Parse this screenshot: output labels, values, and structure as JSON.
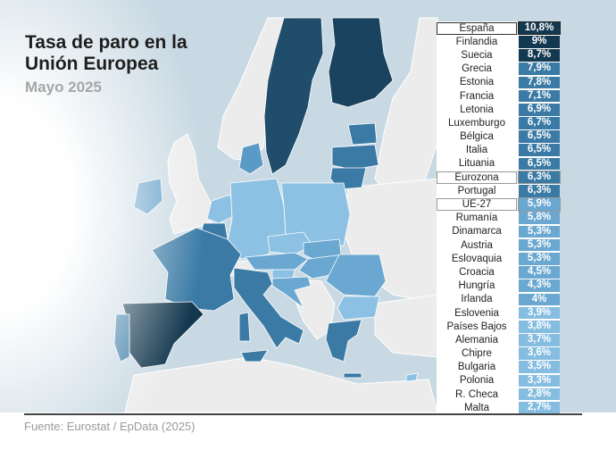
{
  "header": {
    "title": "Tasa de paro en la Unión Europea",
    "subtitle": "Mayo 2025"
  },
  "footer": {
    "source": "Fuente: Eurostat / EpData (2025)"
  },
  "colors": {
    "darkest": "#14384f",
    "dark": "#2b6186",
    "mid": "#3f7ba3",
    "light": "#6aa7d1",
    "lighter": "#85bde0",
    "sea": "#c8d8e2",
    "non_eu_land": "#ececec"
  },
  "table": {
    "rows": [
      {
        "name": "España",
        "value": "10,8%",
        "color": "#14384f",
        "highlight": "strong"
      },
      {
        "name": "Finlandia",
        "value": "9%",
        "color": "#14384f"
      },
      {
        "name": "Suecia",
        "value": "8,7%",
        "color": "#14384f"
      },
      {
        "name": "Grecia",
        "value": "7,9%",
        "color": "#3a7aa5"
      },
      {
        "name": "Estonia",
        "value": "7,8%",
        "color": "#3a7aa5"
      },
      {
        "name": "Francia",
        "value": "7,1%",
        "color": "#3a7aa5"
      },
      {
        "name": "Letonia",
        "value": "6,9%",
        "color": "#3a7aa5"
      },
      {
        "name": "Luxemburgo",
        "value": "6,7%",
        "color": "#3a7aa5"
      },
      {
        "name": "Bélgica",
        "value": "6,5%",
        "color": "#3a7aa5"
      },
      {
        "name": "Italia",
        "value": "6,5%",
        "color": "#3a7aa5"
      },
      {
        "name": "Lituania",
        "value": "6,5%",
        "color": "#3a7aa5"
      },
      {
        "name": "Eurozona",
        "value": "6,3%",
        "color": "#3a7aa5",
        "highlight": "soft"
      },
      {
        "name": "Portugal",
        "value": "6,3%",
        "color": "#3a7aa5"
      },
      {
        "name": "UE-27",
        "value": "5,9%",
        "color": "#6aa7d1",
        "highlight": "soft"
      },
      {
        "name": "Rumanía",
        "value": "5,8%",
        "color": "#6aa7d1"
      },
      {
        "name": "Dinamarca",
        "value": "5,3%",
        "color": "#6aa7d1"
      },
      {
        "name": "Austria",
        "value": "5,3%",
        "color": "#6aa7d1"
      },
      {
        "name": "Eslovaquia",
        "value": "5,3%",
        "color": "#6aa7d1"
      },
      {
        "name": "Croacia",
        "value": "4,5%",
        "color": "#6aa7d1"
      },
      {
        "name": "Hungría",
        "value": "4,3%",
        "color": "#6aa7d1"
      },
      {
        "name": "Irlanda",
        "value": "4%",
        "color": "#6aa7d1"
      },
      {
        "name": "Eslovenia",
        "value": "3,9%",
        "color": "#85bde0"
      },
      {
        "name": "Países Bajos",
        "value": "3,8%",
        "color": "#85bde0"
      },
      {
        "name": "Alemania",
        "value": "3,7%",
        "color": "#85bde0"
      },
      {
        "name": "Chipre",
        "value": "3,6%",
        "color": "#85bde0"
      },
      {
        "name": "Bulgaria",
        "value": "3,5%",
        "color": "#85bde0"
      },
      {
        "name": "Polonia",
        "value": "3,3%",
        "color": "#85bde0"
      },
      {
        "name": "R. Checa",
        "value": "2,8%",
        "color": "#85bde0"
      },
      {
        "name": "Malta",
        "value": "2,7%",
        "color": "#85bde0"
      }
    ]
  },
  "chart_data": {
    "type": "table",
    "title": "Tasa de paro en la Unión Europea",
    "subtitle": "Mayo 2025",
    "source": "Fuente: Eurostat / EpData (2025)",
    "unit": "%",
    "categories": [
      "España",
      "Finlandia",
      "Suecia",
      "Grecia",
      "Estonia",
      "Francia",
      "Letonia",
      "Luxemburgo",
      "Bélgica",
      "Italia",
      "Lituania",
      "Eurozona",
      "Portugal",
      "UE-27",
      "Rumanía",
      "Dinamarca",
      "Austria",
      "Eslovaquia",
      "Croacia",
      "Hungría",
      "Irlanda",
      "Eslovenia",
      "Países Bajos",
      "Alemania",
      "Chipre",
      "Bulgaria",
      "Polonia",
      "R. Checa",
      "Malta"
    ],
    "values": [
      10.8,
      9.0,
      8.7,
      7.9,
      7.8,
      7.1,
      6.9,
      6.7,
      6.5,
      6.5,
      6.5,
      6.3,
      6.3,
      5.9,
      5.8,
      5.3,
      5.3,
      5.3,
      4.5,
      4.3,
      4.0,
      3.9,
      3.8,
      3.7,
      3.6,
      3.5,
      3.3,
      2.8,
      2.7
    ],
    "highlighted": [
      "España",
      "Eurozona",
      "UE-27"
    ],
    "map": "choropleth of EU member states shaded by unemployment rate (darker = higher)"
  }
}
